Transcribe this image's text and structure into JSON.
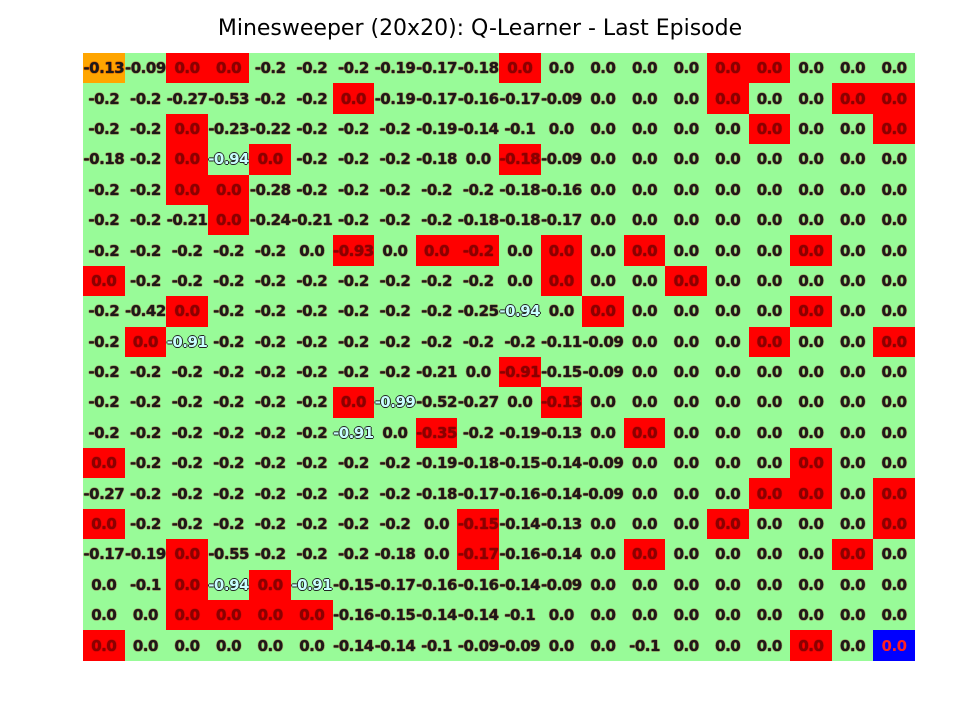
{
  "title": "Minesweeper (20x20): Q-Learner - Last Episode",
  "colors": {
    "free": "#98fb98",
    "mine": "#ff0000",
    "start": "#ffa500",
    "goal": "#0000ff"
  },
  "legend_codes": {
    "F": "free",
    "M": "mine",
    "S": "start",
    "G": "goal"
  },
  "cell_types": [
    "SFMMFFFFFFMFFFFMMFFF",
    "FFFFFFMFFFFFFFFMFFMM",
    "FFMFFFFFFFFFFFFFMFFM",
    "FFMFMFFFFFMFFFFFFFFF",
    "FFMMFFFFFFFFFFFFFFFF",
    "FFFMFFFFFFFFFFFFFFFF",
    "FFFFFFMFMMFMFMFFFMFF",
    "MFFFFFFFFFFMFFMFFFFF",
    "FFMFFFFFFFFFMFFFFMFF",
    "FMFFFFFFFFFFFFFFMFFM",
    "FFFFFFFFFFMFFFFFFFFF",
    "FFFFFFMFFFFMFFFFFFFF",
    "FFFFFFFFMFFFFMFFFFFF",
    "MFFFFFFFFFFFFFFFFMFF",
    "FFFFFFFFFFFFFFFFMMFM",
    "MFFFFFFFFMFFFFFMFFFM",
    "FFMFFFFFFMFFFMFFFFMF",
    "FFMFMFFFFFFFFFFFFFFF",
    "FFMMMMFFFFFFFFFFFFFF",
    "MFFFFFFFFFFFFFFFFMFG"
  ],
  "q_values": [
    [
      "-0.13",
      "-0.09",
      "0.0",
      "0.0",
      "-0.2",
      "-0.2",
      "-0.2",
      "-0.19",
      "-0.17",
      "-0.18",
      "0.0",
      "0.0",
      "0.0",
      "0.0",
      "0.0",
      "0.0",
      "0.0",
      "0.0",
      "0.0",
      "0.0"
    ],
    [
      "-0.2",
      "-0.2",
      "-0.27",
      "-0.53",
      "-0.2",
      "-0.2",
      "0.0",
      "-0.19",
      "-0.17",
      "-0.16",
      "-0.17",
      "-0.09",
      "0.0",
      "0.0",
      "0.0",
      "0.0",
      "0.0",
      "0.0",
      "0.0",
      "0.0"
    ],
    [
      "-0.2",
      "-0.2",
      "0.0",
      "-0.23",
      "-0.22",
      "-0.2",
      "-0.2",
      "-0.2",
      "-0.19",
      "-0.14",
      "-0.1",
      "0.0",
      "0.0",
      "0.0",
      "0.0",
      "0.0",
      "0.0",
      "0.0",
      "0.0",
      "0.0"
    ],
    [
      "-0.18",
      "-0.2",
      "0.0",
      "-0.94",
      "0.0",
      "-0.2",
      "-0.2",
      "-0.2",
      "-0.18",
      "0.0",
      "-0.18",
      "-0.09",
      "0.0",
      "0.0",
      "0.0",
      "0.0",
      "0.0",
      "0.0",
      "0.0",
      "0.0"
    ],
    [
      "-0.2",
      "-0.2",
      "0.0",
      "0.0",
      "-0.28",
      "-0.2",
      "-0.2",
      "-0.2",
      "-0.2",
      "-0.2",
      "-0.18",
      "-0.16",
      "0.0",
      "0.0",
      "0.0",
      "0.0",
      "0.0",
      "0.0",
      "0.0",
      "0.0"
    ],
    [
      "-0.2",
      "-0.2",
      "-0.21",
      "0.0",
      "-0.24",
      "-0.21",
      "-0.2",
      "-0.2",
      "-0.2",
      "-0.18",
      "-0.18",
      "-0.17",
      "0.0",
      "0.0",
      "0.0",
      "0.0",
      "0.0",
      "0.0",
      "0.0",
      "0.0"
    ],
    [
      "-0.2",
      "-0.2",
      "-0.2",
      "-0.2",
      "-0.2",
      "0.0",
      "-0.93",
      "0.0",
      "0.0",
      "-0.2",
      "0.0",
      "0.0",
      "0.0",
      "0.0",
      "0.0",
      "0.0",
      "0.0",
      "0.0",
      "0.0",
      "0.0"
    ],
    [
      "0.0",
      "-0.2",
      "-0.2",
      "-0.2",
      "-0.2",
      "-0.2",
      "-0.2",
      "-0.2",
      "-0.2",
      "-0.2",
      "0.0",
      "0.0",
      "0.0",
      "0.0",
      "0.0",
      "0.0",
      "0.0",
      "0.0",
      "0.0",
      "0.0"
    ],
    [
      "-0.2",
      "-0.42",
      "0.0",
      "-0.2",
      "-0.2",
      "-0.2",
      "-0.2",
      "-0.2",
      "-0.2",
      "-0.25",
      "-0.94",
      "0.0",
      "0.0",
      "0.0",
      "0.0",
      "0.0",
      "0.0",
      "0.0",
      "0.0",
      "0.0"
    ],
    [
      "-0.2",
      "0.0",
      "-0.91",
      "-0.2",
      "-0.2",
      "-0.2",
      "-0.2",
      "-0.2",
      "-0.2",
      "-0.2",
      "-0.2",
      "-0.11",
      "-0.09",
      "0.0",
      "0.0",
      "0.0",
      "0.0",
      "0.0",
      "0.0",
      "0.0"
    ],
    [
      "-0.2",
      "-0.2",
      "-0.2",
      "-0.2",
      "-0.2",
      "-0.2",
      "-0.2",
      "-0.2",
      "-0.21",
      "0.0",
      "-0.91",
      "-0.15",
      "-0.09",
      "0.0",
      "0.0",
      "0.0",
      "0.0",
      "0.0",
      "0.0",
      "0.0"
    ],
    [
      "-0.2",
      "-0.2",
      "-0.2",
      "-0.2",
      "-0.2",
      "-0.2",
      "0.0",
      "-0.99",
      "-0.52",
      "-0.27",
      "0.0",
      "-0.13",
      "0.0",
      "0.0",
      "0.0",
      "0.0",
      "0.0",
      "0.0",
      "0.0",
      "0.0"
    ],
    [
      "-0.2",
      "-0.2",
      "-0.2",
      "-0.2",
      "-0.2",
      "-0.2",
      "-0.91",
      "0.0",
      "-0.35",
      "-0.2",
      "-0.19",
      "-0.13",
      "0.0",
      "0.0",
      "0.0",
      "0.0",
      "0.0",
      "0.0",
      "0.0",
      "0.0"
    ],
    [
      "0.0",
      "-0.2",
      "-0.2",
      "-0.2",
      "-0.2",
      "-0.2",
      "-0.2",
      "-0.2",
      "-0.19",
      "-0.18",
      "-0.15",
      "-0.14",
      "-0.09",
      "0.0",
      "0.0",
      "0.0",
      "0.0",
      "0.0",
      "0.0",
      "0.0"
    ],
    [
      "-0.27",
      "-0.2",
      "-0.2",
      "-0.2",
      "-0.2",
      "-0.2",
      "-0.2",
      "-0.2",
      "-0.18",
      "-0.17",
      "-0.16",
      "-0.14",
      "-0.09",
      "0.0",
      "0.0",
      "0.0",
      "0.0",
      "0.0",
      "0.0",
      "0.0"
    ],
    [
      "0.0",
      "-0.2",
      "-0.2",
      "-0.2",
      "-0.2",
      "-0.2",
      "-0.2",
      "-0.2",
      "0.0",
      "-0.15",
      "-0.14",
      "-0.13",
      "0.0",
      "0.0",
      "0.0",
      "0.0",
      "0.0",
      "0.0",
      "0.0",
      "0.0"
    ],
    [
      "-0.17",
      "-0.19",
      "0.0",
      "-0.55",
      "-0.2",
      "-0.2",
      "-0.2",
      "-0.18",
      "0.0",
      "-0.17",
      "-0.16",
      "-0.14",
      "0.0",
      "0.0",
      "0.0",
      "0.0",
      "0.0",
      "0.0",
      "0.0",
      "0.0"
    ],
    [
      "0.0",
      "-0.1",
      "0.0",
      "-0.94",
      "0.0",
      "-0.91",
      "-0.15",
      "-0.17",
      "-0.16",
      "-0.16",
      "-0.14",
      "-0.09",
      "0.0",
      "0.0",
      "0.0",
      "0.0",
      "0.0",
      "0.0",
      "0.0",
      "0.0"
    ],
    [
      "0.0",
      "0.0",
      "0.0",
      "0.0",
      "0.0",
      "0.0",
      "-0.16",
      "-0.15",
      "-0.14",
      "-0.14",
      "-0.1",
      "0.0",
      "0.0",
      "0.0",
      "0.0",
      "0.0",
      "0.0",
      "0.0",
      "0.0",
      "0.0"
    ],
    [
      "0.0",
      "0.0",
      "0.0",
      "0.0",
      "0.0",
      "0.0",
      "-0.14",
      "-0.14",
      "-0.1",
      "-0.09",
      "-0.09",
      "0.0",
      "0.0",
      "-0.1",
      "0.0",
      "0.0",
      "0.0",
      "0.0",
      "0.0",
      "0.0"
    ]
  ]
}
